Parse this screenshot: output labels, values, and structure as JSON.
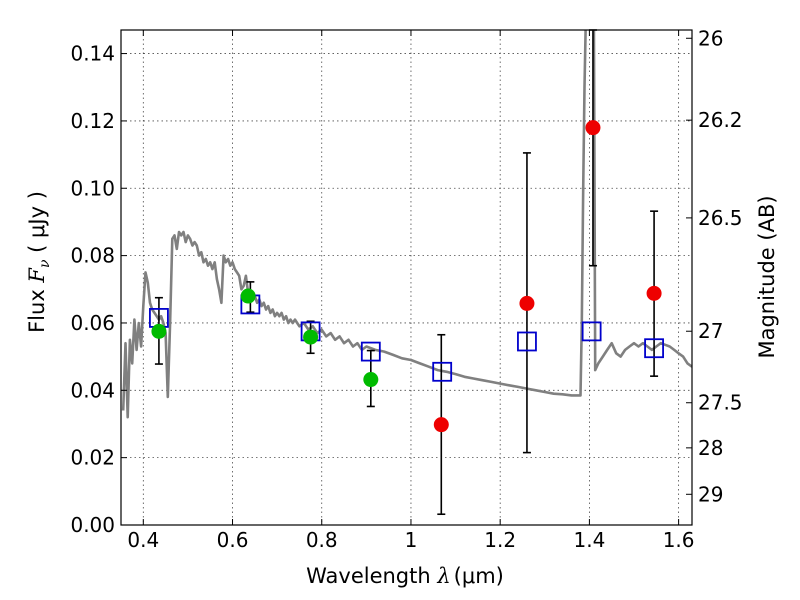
{
  "chart_data": {
    "type": "scatter",
    "xlabel": {
      "prefix": "Wavelength  ",
      "symbol": "λ",
      "unit": "(μm)"
    },
    "ylabel": {
      "prefix": "Flux  ",
      "symbol": "F",
      "sub": "ν",
      "unit": "  ( μJy )"
    },
    "y2label": "Magnitude (AB)",
    "xlim": [
      0.35,
      1.63
    ],
    "ylim": [
      0.0,
      0.147
    ],
    "xticks": [
      0.4,
      0.6,
      0.8,
      1.0,
      1.2,
      1.4,
      1.6
    ],
    "xtick_labels": [
      "0.4",
      "0.6",
      "0.8",
      "1",
      "1.2",
      "1.4",
      "1.6"
    ],
    "yticks": [
      0.0,
      0.02,
      0.04,
      0.06,
      0.08,
      0.1,
      0.12,
      0.14
    ],
    "ytick_labels": [
      "0.00",
      "0.02",
      "0.04",
      "0.06",
      "0.08",
      "0.10",
      "0.12",
      "0.14"
    ],
    "y2ticks": [
      {
        "label": "26",
        "mag": 26.0
      },
      {
        "label": "26.2",
        "mag": 26.2
      },
      {
        "label": "26.5",
        "mag": 26.5
      },
      {
        "label": "27",
        "mag": 27.0
      },
      {
        "label": "27.5",
        "mag": 27.5
      },
      {
        "label": "28",
        "mag": 28.0
      },
      {
        "label": "29",
        "mag": 29.0
      }
    ],
    "grid": true,
    "colors": {
      "template": "#808080",
      "model": "#0000cc",
      "detections": "#00bb00",
      "nondetections": "#ee0000",
      "errorbar": "#000000"
    },
    "model_template": [
      [
        0.355,
        0.034
      ],
      [
        0.36,
        0.054
      ],
      [
        0.365,
        0.032
      ],
      [
        0.37,
        0.055
      ],
      [
        0.375,
        0.048
      ],
      [
        0.38,
        0.061
      ],
      [
        0.385,
        0.052
      ],
      [
        0.39,
        0.06
      ],
      [
        0.395,
        0.053
      ],
      [
        0.4,
        0.065
      ],
      [
        0.405,
        0.075
      ],
      [
        0.41,
        0.072
      ],
      [
        0.415,
        0.066
      ],
      [
        0.42,
        0.064
      ],
      [
        0.425,
        0.063
      ],
      [
        0.43,
        0.062
      ],
      [
        0.435,
        0.061
      ],
      [
        0.44,
        0.062
      ],
      [
        0.445,
        0.06
      ],
      [
        0.45,
        0.057
      ],
      [
        0.455,
        0.038
      ],
      [
        0.46,
        0.06
      ],
      [
        0.465,
        0.085
      ],
      [
        0.47,
        0.086
      ],
      [
        0.475,
        0.082
      ],
      [
        0.48,
        0.087
      ],
      [
        0.485,
        0.086
      ],
      [
        0.49,
        0.087
      ],
      [
        0.495,
        0.084
      ],
      [
        0.5,
        0.086
      ],
      [
        0.505,
        0.085
      ],
      [
        0.51,
        0.083
      ],
      [
        0.515,
        0.084
      ],
      [
        0.52,
        0.083
      ],
      [
        0.525,
        0.08
      ],
      [
        0.53,
        0.081
      ],
      [
        0.535,
        0.078
      ],
      [
        0.54,
        0.079
      ],
      [
        0.545,
        0.077
      ],
      [
        0.55,
        0.078
      ],
      [
        0.555,
        0.076
      ],
      [
        0.56,
        0.078
      ],
      [
        0.565,
        0.073
      ],
      [
        0.57,
        0.07
      ],
      [
        0.575,
        0.066
      ],
      [
        0.58,
        0.08
      ],
      [
        0.585,
        0.078
      ],
      [
        0.59,
        0.079
      ],
      [
        0.595,
        0.077
      ],
      [
        0.6,
        0.078
      ],
      [
        0.605,
        0.076
      ],
      [
        0.61,
        0.075
      ],
      [
        0.615,
        0.074
      ],
      [
        0.62,
        0.07
      ],
      [
        0.625,
        0.071
      ],
      [
        0.63,
        0.074
      ],
      [
        0.635,
        0.069
      ],
      [
        0.64,
        0.068
      ],
      [
        0.645,
        0.069
      ],
      [
        0.65,
        0.068
      ],
      [
        0.655,
        0.066
      ],
      [
        0.66,
        0.067
      ],
      [
        0.665,
        0.065
      ],
      [
        0.67,
        0.066
      ],
      [
        0.675,
        0.064
      ],
      [
        0.68,
        0.065
      ],
      [
        0.685,
        0.063
      ],
      [
        0.69,
        0.064
      ],
      [
        0.695,
        0.062
      ],
      [
        0.7,
        0.063
      ],
      [
        0.705,
        0.062
      ],
      [
        0.71,
        0.063
      ],
      [
        0.715,
        0.061
      ],
      [
        0.72,
        0.062
      ],
      [
        0.725,
        0.06
      ],
      [
        0.73,
        0.061
      ],
      [
        0.735,
        0.06
      ],
      [
        0.74,
        0.061
      ],
      [
        0.745,
        0.06
      ],
      [
        0.75,
        0.059
      ],
      [
        0.76,
        0.06
      ],
      [
        0.77,
        0.058
      ],
      [
        0.78,
        0.059
      ],
      [
        0.79,
        0.057
      ],
      [
        0.8,
        0.058
      ],
      [
        0.81,
        0.056
      ],
      [
        0.82,
        0.057
      ],
      [
        0.83,
        0.055
      ],
      [
        0.84,
        0.056
      ],
      [
        0.85,
        0.054
      ],
      [
        0.86,
        0.055
      ],
      [
        0.87,
        0.053
      ],
      [
        0.88,
        0.054
      ],
      [
        0.89,
        0.052
      ],
      [
        0.9,
        0.053
      ],
      [
        0.92,
        0.052
      ],
      [
        0.94,
        0.0515
      ],
      [
        0.96,
        0.0505
      ],
      [
        0.98,
        0.0495
      ],
      [
        1.0,
        0.049
      ],
      [
        1.02,
        0.048
      ],
      [
        1.04,
        0.047
      ],
      [
        1.06,
        0.046
      ],
      [
        1.08,
        0.0455
      ],
      [
        1.1,
        0.0448
      ],
      [
        1.12,
        0.044
      ],
      [
        1.14,
        0.0435
      ],
      [
        1.16,
        0.043
      ],
      [
        1.18,
        0.0425
      ],
      [
        1.2,
        0.042
      ],
      [
        1.22,
        0.0415
      ],
      [
        1.24,
        0.041
      ],
      [
        1.26,
        0.0405
      ],
      [
        1.28,
        0.04
      ],
      [
        1.3,
        0.0395
      ],
      [
        1.32,
        0.039
      ],
      [
        1.34,
        0.0388
      ],
      [
        1.36,
        0.0385
      ],
      [
        1.38,
        0.0385
      ],
      [
        1.383,
        0.06
      ],
      [
        1.386,
        0.1
      ],
      [
        1.389,
        0.13
      ],
      [
        1.392,
        0.15
      ],
      [
        1.41,
        0.15
      ],
      [
        1.413,
        0.046
      ],
      [
        1.42,
        0.048
      ],
      [
        1.43,
        0.05
      ],
      [
        1.44,
        0.052
      ],
      [
        1.45,
        0.054
      ],
      [
        1.46,
        0.051
      ],
      [
        1.47,
        0.05
      ],
      [
        1.48,
        0.052
      ],
      [
        1.49,
        0.053
      ],
      [
        1.5,
        0.054
      ],
      [
        1.51,
        0.053
      ],
      [
        1.52,
        0.054
      ],
      [
        1.53,
        0.053
      ],
      [
        1.54,
        0.052
      ],
      [
        1.55,
        0.053
      ],
      [
        1.56,
        0.054
      ],
      [
        1.57,
        0.0535
      ],
      [
        1.58,
        0.053
      ],
      [
        1.59,
        0.052
      ],
      [
        1.6,
        0.051
      ],
      [
        1.61,
        0.05
      ],
      [
        1.62,
        0.048
      ],
      [
        1.63,
        0.047
      ]
    ],
    "model_fluxes": [
      {
        "x": 0.435,
        "y": 0.0615
      },
      {
        "x": 0.64,
        "y": 0.0655
      },
      {
        "x": 0.775,
        "y": 0.0575
      },
      {
        "x": 0.91,
        "y": 0.0515
      },
      {
        "x": 1.07,
        "y": 0.0455
      },
      {
        "x": 1.26,
        "y": 0.0545
      },
      {
        "x": 1.405,
        "y": 0.0575
      },
      {
        "x": 1.545,
        "y": 0.0525
      }
    ],
    "detections": [
      {
        "x": 0.435,
        "y": 0.0575
      },
      {
        "x": 0.635,
        "y": 0.068
      },
      {
        "x": 0.775,
        "y": 0.0558
      },
      {
        "x": 0.91,
        "y": 0.0432
      }
    ],
    "nondetections": [
      {
        "x": 1.068,
        "y": 0.0298
      },
      {
        "x": 1.26,
        "y": 0.0658
      },
      {
        "x": 1.408,
        "y": 0.118
      },
      {
        "x": 1.545,
        "y": 0.0688
      }
    ],
    "errorbars": [
      {
        "x": 0.435,
        "lo": 0.0478,
        "hi": 0.0675
      },
      {
        "x": 0.64,
        "lo": 0.0632,
        "hi": 0.0722
      },
      {
        "x": 0.775,
        "lo": 0.051,
        "hi": 0.0605
      },
      {
        "x": 0.91,
        "lo": 0.0352,
        "hi": 0.0518
      },
      {
        "x": 1.068,
        "lo": 0.0032,
        "hi": 0.0565
      },
      {
        "x": 1.26,
        "lo": 0.0215,
        "hi": 0.1105
      },
      {
        "x": 1.408,
        "lo": 0.077,
        "hi": 0.148
      },
      {
        "x": 1.545,
        "lo": 0.0442,
        "hi": 0.0932
      }
    ]
  }
}
